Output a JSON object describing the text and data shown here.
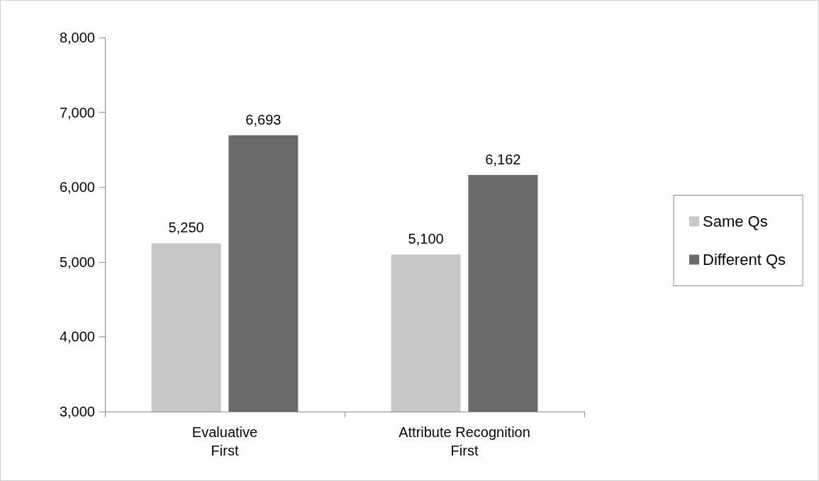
{
  "chart_data": {
    "type": "bar",
    "categories": [
      "Evaluative\nFirst",
      "Attribute Recognition\nFirst"
    ],
    "series": [
      {
        "name": "Same Qs",
        "color": "#c8c8c8",
        "values": [
          5250,
          5100
        ],
        "value_labels": [
          "5,250",
          "5,100"
        ]
      },
      {
        "name": "Different Qs",
        "color": "#6a6a6a",
        "values": [
          6693,
          6162
        ],
        "value_labels": [
          "6,693",
          "6,162"
        ]
      }
    ],
    "ylim": [
      3000,
      8000
    ],
    "yticks": [
      {
        "value": 3000,
        "label": "3,000"
      },
      {
        "value": 4000,
        "label": "4,000"
      },
      {
        "value": 5000,
        "label": "5,000"
      },
      {
        "value": 6000,
        "label": "6,000"
      },
      {
        "value": 7000,
        "label": "7,000"
      },
      {
        "value": 8000,
        "label": "8,000"
      }
    ],
    "grid": false,
    "legend": "right"
  }
}
